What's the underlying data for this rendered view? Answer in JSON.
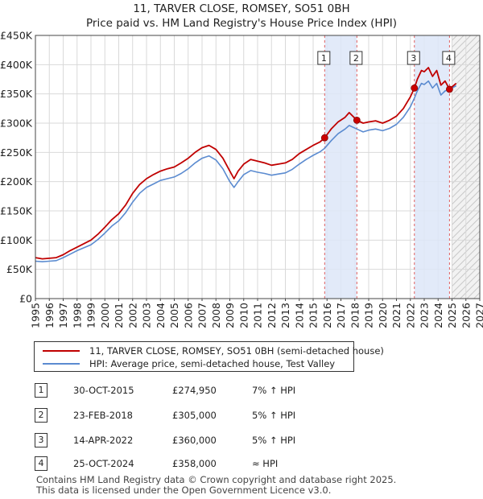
{
  "title": {
    "line1": "11, TARVER CLOSE, ROMSEY, SO51 0BH",
    "line2": "Price paid vs. HM Land Registry's House Price Index (HPI)"
  },
  "colors": {
    "price": "#c00000",
    "hpi": "#5b8bd0",
    "shade": "#dde6f8",
    "marker": "#cc0000"
  },
  "chart_data": {
    "type": "line",
    "title": "11, TARVER CLOSE, ROMSEY, SO51 0BH — Price paid vs. HM Land Registry's House Price Index (HPI)",
    "xlim": [
      1995,
      2027
    ],
    "ylim": [
      0,
      450000
    ],
    "x_ticks": [
      1995,
      1996,
      1997,
      1998,
      1999,
      2000,
      2001,
      2002,
      2003,
      2004,
      2005,
      2006,
      2007,
      2008,
      2009,
      2010,
      2011,
      2012,
      2013,
      2014,
      2015,
      2016,
      2017,
      2018,
      2019,
      2020,
      2021,
      2022,
      2023,
      2024,
      2025,
      2026,
      2027
    ],
    "y_ticks": [
      0,
      50000,
      100000,
      150000,
      200000,
      250000,
      300000,
      350000,
      400000,
      450000
    ],
    "y_tick_labels": [
      "£0",
      "£50K",
      "£100K",
      "£150K",
      "£200K",
      "£250K",
      "£300K",
      "£350K",
      "£400K",
      "£450K"
    ],
    "grid": true,
    "forecast_from": 2025.0,
    "shaded_ranges": [
      [
        2015.83,
        2018.15
      ],
      [
        2022.29,
        2024.82
      ]
    ],
    "series": [
      {
        "name": "11, TARVER CLOSE, ROMSEY, SO51 0BH (semi-detached house)",
        "x": [
          1995.0,
          1995.5,
          1996.0,
          1996.5,
          1997.0,
          1997.5,
          1998.0,
          1998.5,
          1999.0,
          1999.5,
          2000.0,
          2000.5,
          2001.0,
          2001.5,
          2002.0,
          2002.5,
          2003.0,
          2003.5,
          2004.0,
          2004.5,
          2005.0,
          2005.5,
          2006.0,
          2006.5,
          2007.0,
          2007.5,
          2008.0,
          2008.5,
          2009.0,
          2009.3,
          2009.6,
          2010.0,
          2010.5,
          2011.0,
          2011.5,
          2012.0,
          2012.5,
          2013.0,
          2013.5,
          2014.0,
          2014.5,
          2015.0,
          2015.5,
          2015.83,
          2016.3,
          2016.8,
          2017.3,
          2017.6,
          2018.15,
          2018.6,
          2019.0,
          2019.5,
          2020.0,
          2020.5,
          2021.0,
          2021.5,
          2022.0,
          2022.29,
          2022.5,
          2022.8,
          2023.0,
          2023.3,
          2023.6,
          2023.9,
          2024.2,
          2024.5,
          2024.82,
          2025.0,
          2025.3
        ],
        "values": [
          70000,
          68000,
          69000,
          70000,
          75000,
          82000,
          88000,
          94000,
          100000,
          110000,
          122000,
          135000,
          145000,
          160000,
          180000,
          195000,
          205000,
          212000,
          218000,
          222000,
          225000,
          232000,
          240000,
          250000,
          258000,
          262000,
          255000,
          240000,
          218000,
          205000,
          218000,
          230000,
          238000,
          235000,
          232000,
          228000,
          230000,
          232000,
          238000,
          248000,
          255000,
          262000,
          268000,
          274950,
          290000,
          302000,
          310000,
          318000,
          305000,
          300000,
          302000,
          304000,
          300000,
          305000,
          312000,
          325000,
          345000,
          360000,
          375000,
          390000,
          388000,
          395000,
          380000,
          390000,
          365000,
          372000,
          358000,
          362000,
          368000
        ]
      },
      {
        "name": "HPI: Average price, semi-detached house, Test Valley",
        "x": [
          1995.0,
          1995.5,
          1996.0,
          1996.5,
          1997.0,
          1997.5,
          1998.0,
          1998.5,
          1999.0,
          1999.5,
          2000.0,
          2000.5,
          2001.0,
          2001.5,
          2002.0,
          2002.5,
          2003.0,
          2003.5,
          2004.0,
          2004.5,
          2005.0,
          2005.5,
          2006.0,
          2006.5,
          2007.0,
          2007.5,
          2008.0,
          2008.5,
          2009.0,
          2009.3,
          2009.6,
          2010.0,
          2010.5,
          2011.0,
          2011.5,
          2012.0,
          2012.5,
          2013.0,
          2013.5,
          2014.0,
          2014.5,
          2015.0,
          2015.5,
          2015.83,
          2016.3,
          2016.8,
          2017.3,
          2017.6,
          2018.15,
          2018.6,
          2019.0,
          2019.5,
          2020.0,
          2020.5,
          2021.0,
          2021.5,
          2022.0,
          2022.29,
          2022.5,
          2022.8,
          2023.0,
          2023.3,
          2023.6,
          2023.9,
          2024.2,
          2024.5,
          2024.82,
          2025.0,
          2025.3
        ],
        "values": [
          64000,
          63000,
          64000,
          65000,
          70000,
          76000,
          82000,
          87000,
          92000,
          101000,
          112000,
          124000,
          133000,
          147000,
          165000,
          180000,
          190000,
          196000,
          202000,
          205000,
          208000,
          214000,
          222000,
          232000,
          240000,
          244000,
          237000,
          222000,
          200000,
          190000,
          200000,
          212000,
          219000,
          216000,
          214000,
          211000,
          213000,
          215000,
          221000,
          230000,
          238000,
          245000,
          251000,
          257000,
          270000,
          282000,
          290000,
          296000,
          290000,
          285000,
          288000,
          290000,
          287000,
          291000,
          298000,
          310000,
          328000,
          343000,
          355000,
          368000,
          366000,
          372000,
          360000,
          368000,
          348000,
          355000,
          358000,
          360000,
          364000
        ]
      }
    ],
    "sales": [
      {
        "num": "1",
        "x": 2015.83,
        "value": 274950
      },
      {
        "num": "2",
        "x": 2018.15,
        "value": 305000
      },
      {
        "num": "3",
        "x": 2022.29,
        "value": 360000
      },
      {
        "num": "4",
        "x": 2024.82,
        "value": 358000
      }
    ]
  },
  "legend": {
    "price_label": "11, TARVER CLOSE, ROMSEY, SO51 0BH (semi-detached house)",
    "hpi_label": "HPI: Average price, semi-detached house, Test Valley"
  },
  "sales_table": [
    {
      "num": "1",
      "date": "30-OCT-2015",
      "price": "£274,950",
      "relation": "7% ↑ HPI"
    },
    {
      "num": "2",
      "date": "23-FEB-2018",
      "price": "£305,000",
      "relation": "5% ↑ HPI"
    },
    {
      "num": "3",
      "date": "14-APR-2022",
      "price": "£360,000",
      "relation": "5% ↑ HPI"
    },
    {
      "num": "4",
      "date": "25-OCT-2024",
      "price": "£358,000",
      "relation": "≈ HPI"
    }
  ],
  "footer": {
    "line1": "Contains HM Land Registry data © Crown copyright and database right 2025.",
    "line2": "This data is licensed under the Open Government Licence v3.0."
  }
}
